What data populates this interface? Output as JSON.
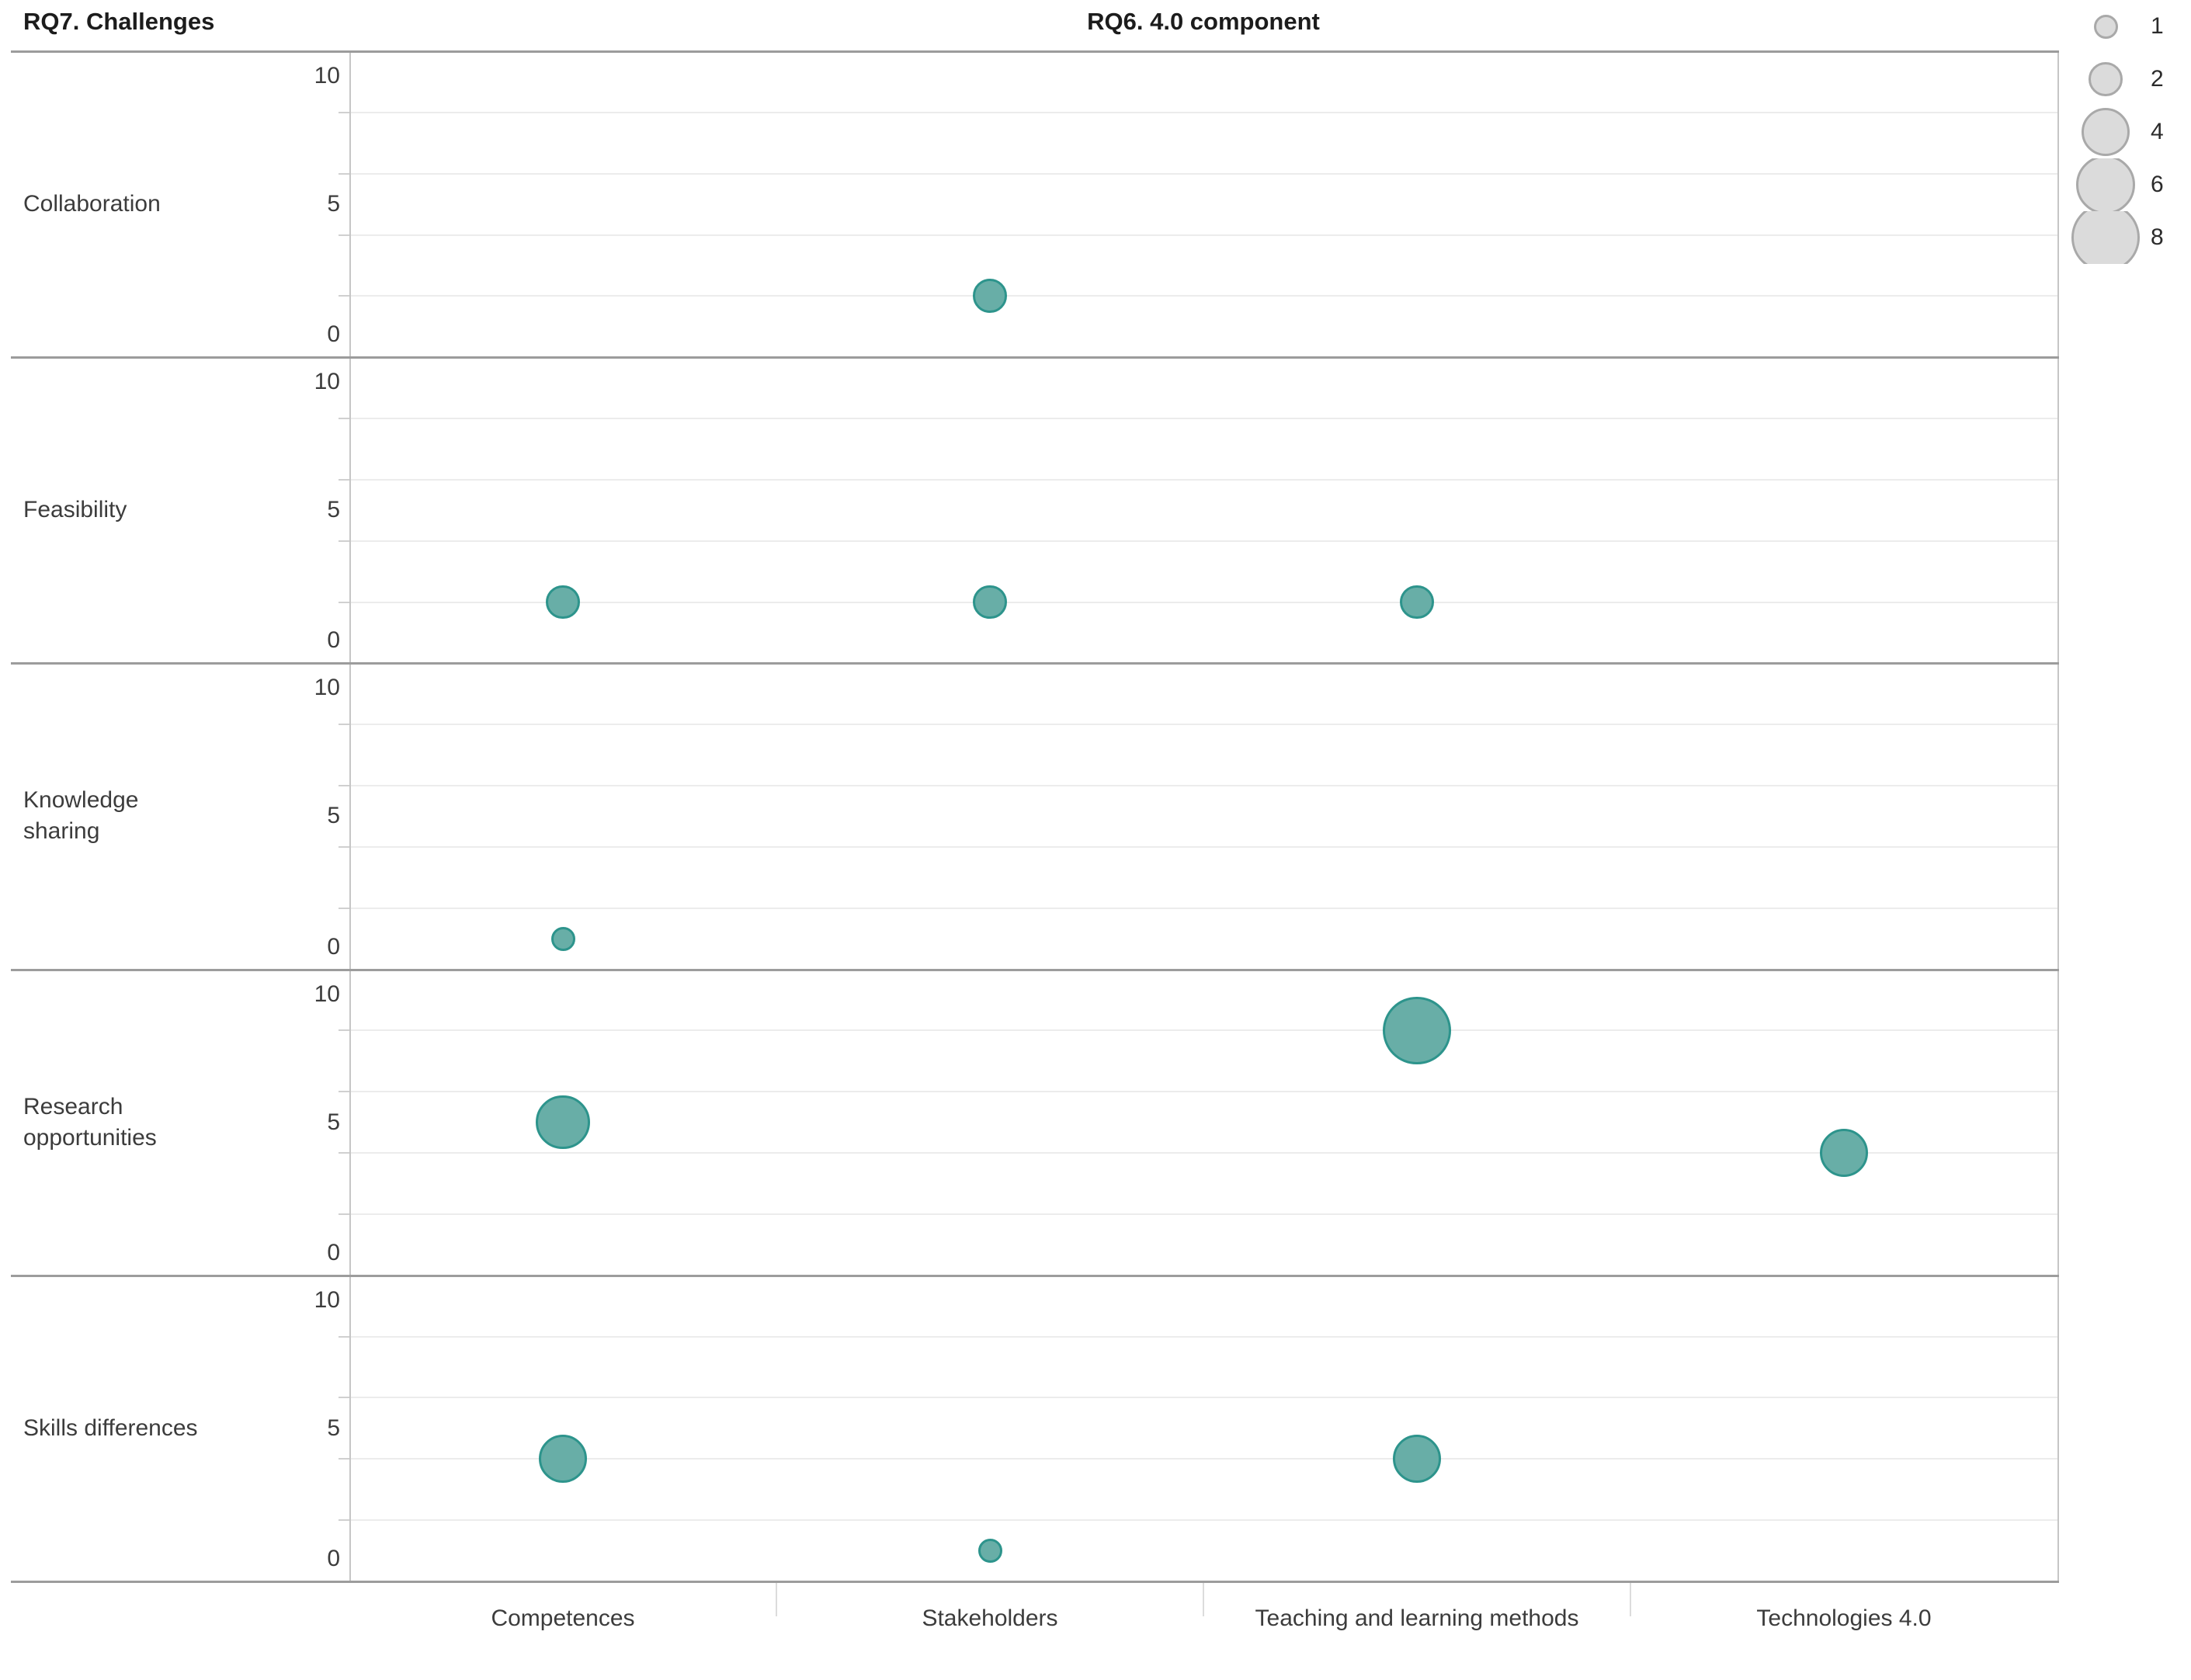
{
  "titles": {
    "rows": "RQ7. Challenges",
    "columns": "RQ6. 4.0 component"
  },
  "legend": {
    "sizes": [
      "1",
      "2",
      "4",
      "6",
      "8"
    ]
  },
  "colors": {
    "bubble_fill": "#68AEA7",
    "bubble_stroke": "#2D948C",
    "legend_fill": "#DBDBDB",
    "legend_stroke": "#A9A9A9"
  },
  "chart_data": {
    "type": "scatter",
    "subtype": "bubble-small-multiples",
    "row_axis_title": "RQ7. Challenges",
    "column_axis_title": "RQ6. 4.0 component",
    "row_categories": [
      "Collaboration",
      "Feasibility",
      "Knowledge sharing",
      "Research opportunities",
      "Skills differences"
    ],
    "x_categories": [
      "Competences",
      "Stakeholders",
      "Teaching and learning methods",
      "Technologies 4.0"
    ],
    "y_axis": {
      "min": 0,
      "max": 10,
      "tick_display": [
        "10",
        "5",
        "0"
      ],
      "gridline_values": [
        2,
        4,
        6,
        8
      ]
    },
    "size_legend_values": [
      1,
      2,
      4,
      6,
      8
    ],
    "points": [
      {
        "row": "Collaboration",
        "x": "Stakeholders",
        "y": 2,
        "size": 2
      },
      {
        "row": "Feasibility",
        "x": "Competences",
        "y": 2,
        "size": 2
      },
      {
        "row": "Feasibility",
        "x": "Stakeholders",
        "y": 2,
        "size": 2
      },
      {
        "row": "Feasibility",
        "x": "Teaching and learning methods",
        "y": 2,
        "size": 2
      },
      {
        "row": "Knowledge sharing",
        "x": "Competences",
        "y": 1,
        "size": 1
      },
      {
        "row": "Research opportunities",
        "x": "Competences",
        "y": 5,
        "size": 5
      },
      {
        "row": "Research opportunities",
        "x": "Teaching and learning methods",
        "y": 8,
        "size": 8
      },
      {
        "row": "Research opportunities",
        "x": "Technologies 4.0",
        "y": 4,
        "size": 4
      },
      {
        "row": "Skills differences",
        "x": "Competences",
        "y": 4,
        "size": 4
      },
      {
        "row": "Skills differences",
        "x": "Stakeholders",
        "y": 1,
        "size": 1
      },
      {
        "row": "Skills differences",
        "x": "Teaching and learning methods",
        "y": 4,
        "size": 4
      }
    ],
    "layout": {
      "grid": true,
      "legend_position": "top-right"
    }
  }
}
